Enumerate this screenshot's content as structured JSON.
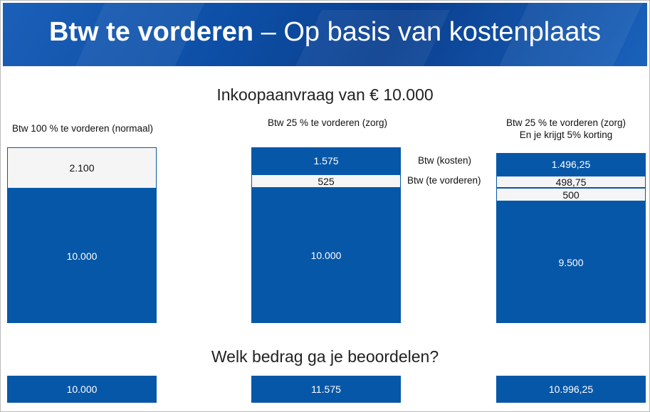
{
  "header": {
    "title_bold": "Btw te vorderen",
    "title_rest": " – Op basis van kostenplaats",
    "color": "#0d4fa6"
  },
  "section_top": {
    "title": "Inkoopaanvraag van € 10.000"
  },
  "section_bottom": {
    "title": "Welk bedrag ga je beoordelen?"
  },
  "legend": {
    "kosten": "Btw (kosten)",
    "te_vorderen": "Btw (te vorderen)"
  },
  "columns": [
    {
      "label_line1": "Btw 100 % te vorderen (normaal)",
      "label_line2": "",
      "segments": {
        "a": "2.100",
        "b": "10.000"
      },
      "total": "10.000"
    },
    {
      "label_line1": "Btw 25 % te vorderen (zorg)",
      "label_line2": "",
      "segments": {
        "a": "1.575",
        "b": "525",
        "c": "10.000"
      },
      "total": "11.575"
    },
    {
      "label_line1": "Btw 25 % te vorderen (zorg)",
      "label_line2": "En je krijgt 5% korting",
      "segments": {
        "a": "1.496,25",
        "b": "498,75",
        "c": "500",
        "d": "9.500"
      },
      "total": "10.996,25"
    }
  ],
  "colors": {
    "blue": "#0757a8",
    "light": "#f5f5f5"
  }
}
